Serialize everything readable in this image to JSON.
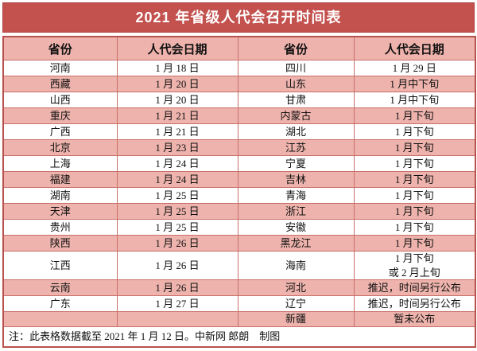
{
  "colors": {
    "title_bg": "#c3514e",
    "title_border": "#ae4643",
    "title_text": "#ffffff",
    "header_bg": "#edb3ac",
    "row_alt_bg": "#edb3ac",
    "grid": "#c96f69",
    "outer_border": "#b8514d",
    "text": "#111111"
  },
  "chart_data": {
    "type": "table",
    "title": "2021 年省级人代会召开时间表",
    "columns": [
      "省份",
      "人代会日期",
      "省份",
      "人代会日期"
    ],
    "rows": [
      [
        "河南",
        "1 月 18 日",
        "四川",
        "1 月 29 日"
      ],
      [
        "西藏",
        "1 月 20 日",
        "山东",
        "1 月中下旬"
      ],
      [
        "山西",
        "1 月 20 日",
        "甘肃",
        "1 月中下旬"
      ],
      [
        "重庆",
        "1 月 21 日",
        "内蒙古",
        "1 月下旬"
      ],
      [
        "广西",
        "1 月 21 日",
        "湖北",
        "1 月下旬"
      ],
      [
        "北京",
        "1 月 23 日",
        "江苏",
        "1 月下旬"
      ],
      [
        "上海",
        "1 月 24 日",
        "宁夏",
        "1 月下旬"
      ],
      [
        "福建",
        "1 月 24 日",
        "吉林",
        "1 月下旬"
      ],
      [
        "湖南",
        "1 月 25 日",
        "青海",
        "1 月下旬"
      ],
      [
        "天津",
        "1 月 25 日",
        "浙江",
        "1 月下旬"
      ],
      [
        "贵州",
        "1 月 25 日",
        "安徽",
        "1 月下旬"
      ],
      [
        "陕西",
        "1 月 26 日",
        "黑龙江",
        "1 月下旬"
      ],
      [
        "江西",
        "1 月 26 日",
        "海南",
        "1 月下旬\n或 2 月上旬"
      ],
      [
        "云南",
        "1 月 26 日",
        "河北",
        "推迟，时间另行公布"
      ],
      [
        "广东",
        "1 月 27 日",
        "辽宁",
        "推迟，时间另行公布"
      ],
      [
        "",
        "",
        "新疆",
        "暂未公布"
      ]
    ],
    "footnote": "注：此表格数据截至 2021 年 1 月 12 日。中新网 郎朗　制图"
  }
}
